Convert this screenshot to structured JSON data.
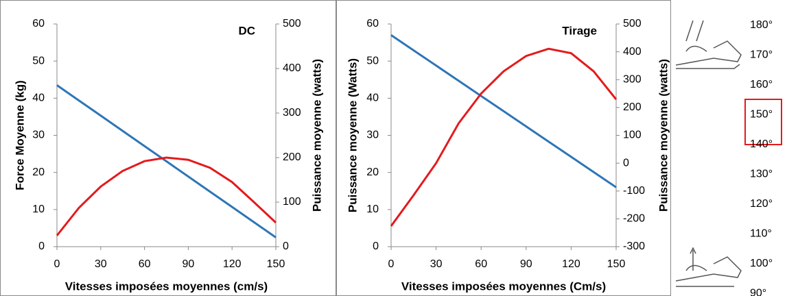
{
  "chart_data": [
    {
      "type": "line",
      "title": "DC",
      "xlabel": "Vitesses imposées moyennes (cm/s)",
      "ylabel": "Force Moyenne (kg)",
      "y2label": "Puissance moyenne (watts)",
      "x": [
        0,
        15,
        30,
        45,
        60,
        75,
        90,
        105,
        120,
        135,
        150
      ],
      "series": [
        {
          "color": "#2e75b6",
          "values": [
            43.5,
            39.4,
            35.3,
            31.2,
            27.1,
            23,
            18.9,
            14.8,
            10.7,
            6.6,
            2.5
          ]
        },
        {
          "color": "#e31a1c",
          "axis": "y2",
          "values": [
            25,
            87,
            135,
            170,
            192,
            200,
            195,
            177,
            145,
            100,
            54
          ]
        }
      ],
      "xlim": [
        0,
        150
      ],
      "xticks": [
        0,
        30,
        60,
        90,
        120,
        150
      ],
      "ylim": [
        0,
        60
      ],
      "yticks": [
        0,
        10,
        20,
        30,
        40,
        50,
        60
      ],
      "y2lim": [
        0,
        500
      ],
      "y2ticks": [
        0,
        100,
        200,
        300,
        400,
        500
      ]
    },
    {
      "type": "line",
      "title": "Tirage",
      "xlabel": "Vitesses imposées moyennes (Cm/s)",
      "ylabel": "Puissance moyenne (Watts)",
      "y2label": "Puissance moyenne (watts)",
      "x": [
        0,
        15,
        30,
        45,
        60,
        75,
        90,
        105,
        120,
        135,
        150
      ],
      "series": [
        {
          "color": "#2e75b6",
          "values": [
            57,
            52.9,
            48.8,
            44.7,
            40.6,
            36.5,
            32.4,
            28.3,
            24.2,
            20.1,
            16
          ]
        },
        {
          "color": "#e31a1c",
          "axis": "y2",
          "values": [
            -226,
            -115,
            0,
            143,
            250,
            330,
            385,
            411,
            395,
            330,
            229
          ]
        }
      ],
      "xlim": [
        0,
        150
      ],
      "xticks": [
        0,
        30,
        60,
        90,
        120,
        150
      ],
      "ylim": [
        0,
        60
      ],
      "yticks": [
        0,
        10,
        20,
        30,
        40,
        50,
        60
      ],
      "y2lim": [
        -300,
        500
      ],
      "y2ticks": [
        -300,
        -200,
        -100,
        0,
        100,
        200,
        300,
        400,
        500
      ]
    }
  ],
  "sidebar": {
    "angles": [
      "180°",
      "170°",
      "160°",
      "150°",
      "140°",
      "130°",
      "120°",
      "110°",
      "100°",
      "90°"
    ]
  }
}
